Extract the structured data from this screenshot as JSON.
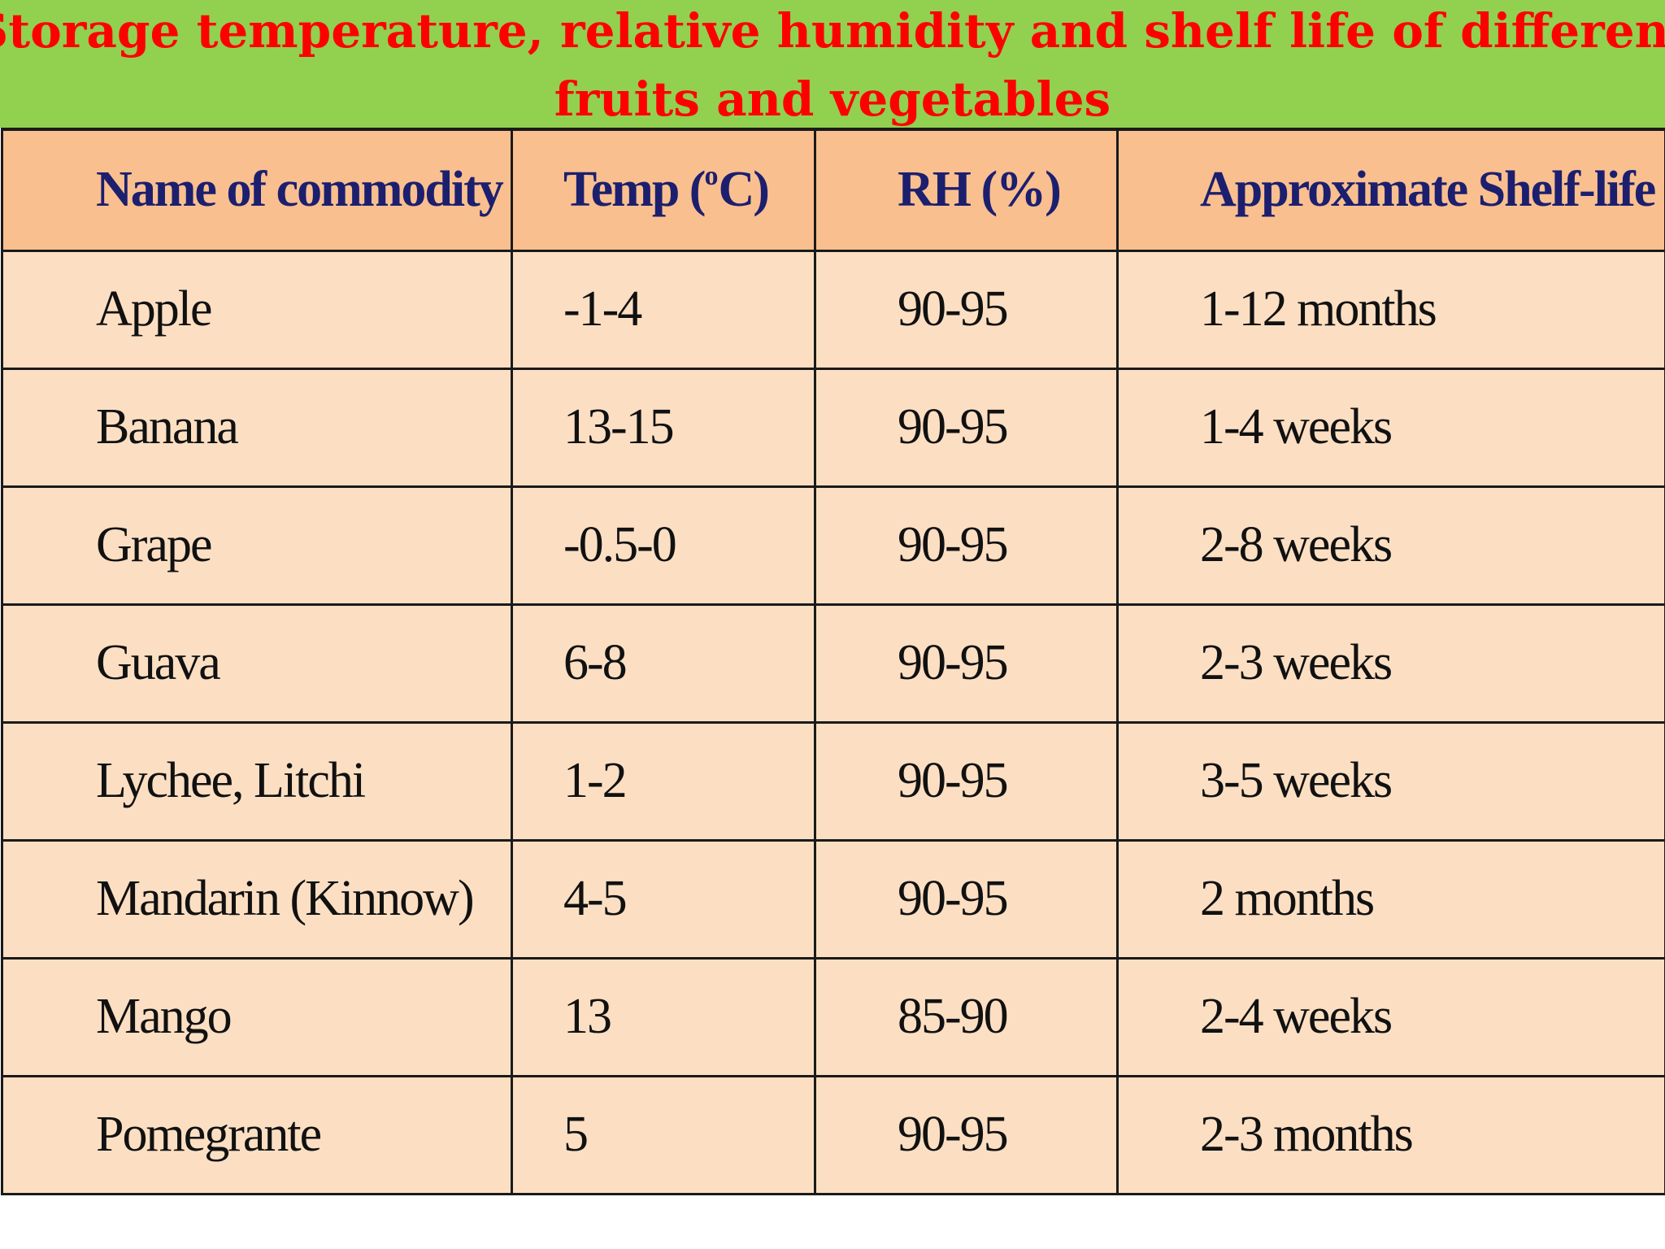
{
  "title": {
    "line1": "Storage temperature, relative humidity and shelf life of different",
    "line2": "fruits and vegetables"
  },
  "colors": {
    "title_band": "#92d050",
    "title_text": "#ff0000",
    "header_bg": "#fabf8f",
    "row_bg": "#fcdfc3",
    "header_text": "#1c1f6e"
  },
  "table": {
    "headers": {
      "commodity": "Name of commodity",
      "temp_prefix": "Temp (",
      "temp_degree": "o",
      "temp_suffix": "C)",
      "rh": "RH (%)",
      "shelf_life": "Approximate Shelf-life"
    },
    "rows": [
      {
        "commodity": "Apple",
        "temp": "-1-4",
        "rh": "90-95",
        "shelf_life": "1-12 months"
      },
      {
        "commodity": "Banana",
        "temp": "13-15",
        "rh": "90-95",
        "shelf_life": "1-4 weeks"
      },
      {
        "commodity": "Grape",
        "temp": "-0.5-0",
        "rh": "90-95",
        "shelf_life": "2-8 weeks"
      },
      {
        "commodity": "Guava",
        "temp": "6-8",
        "rh": "90-95",
        "shelf_life": "2-3 weeks"
      },
      {
        "commodity": "Lychee, Litchi",
        "temp": "1-2",
        "rh": "90-95",
        "shelf_life": "3-5 weeks"
      },
      {
        "commodity": "Mandarin (Kinnow)",
        "temp": "4-5",
        "rh": "90-95",
        "shelf_life": "2 months"
      },
      {
        "commodity": "Mango",
        "temp": "13",
        "rh": "85-90",
        "shelf_life": "2-4 weeks"
      },
      {
        "commodity": "Pomegrante",
        "temp": "5",
        "rh": "90-95",
        "shelf_life": "2-3 months"
      }
    ]
  }
}
